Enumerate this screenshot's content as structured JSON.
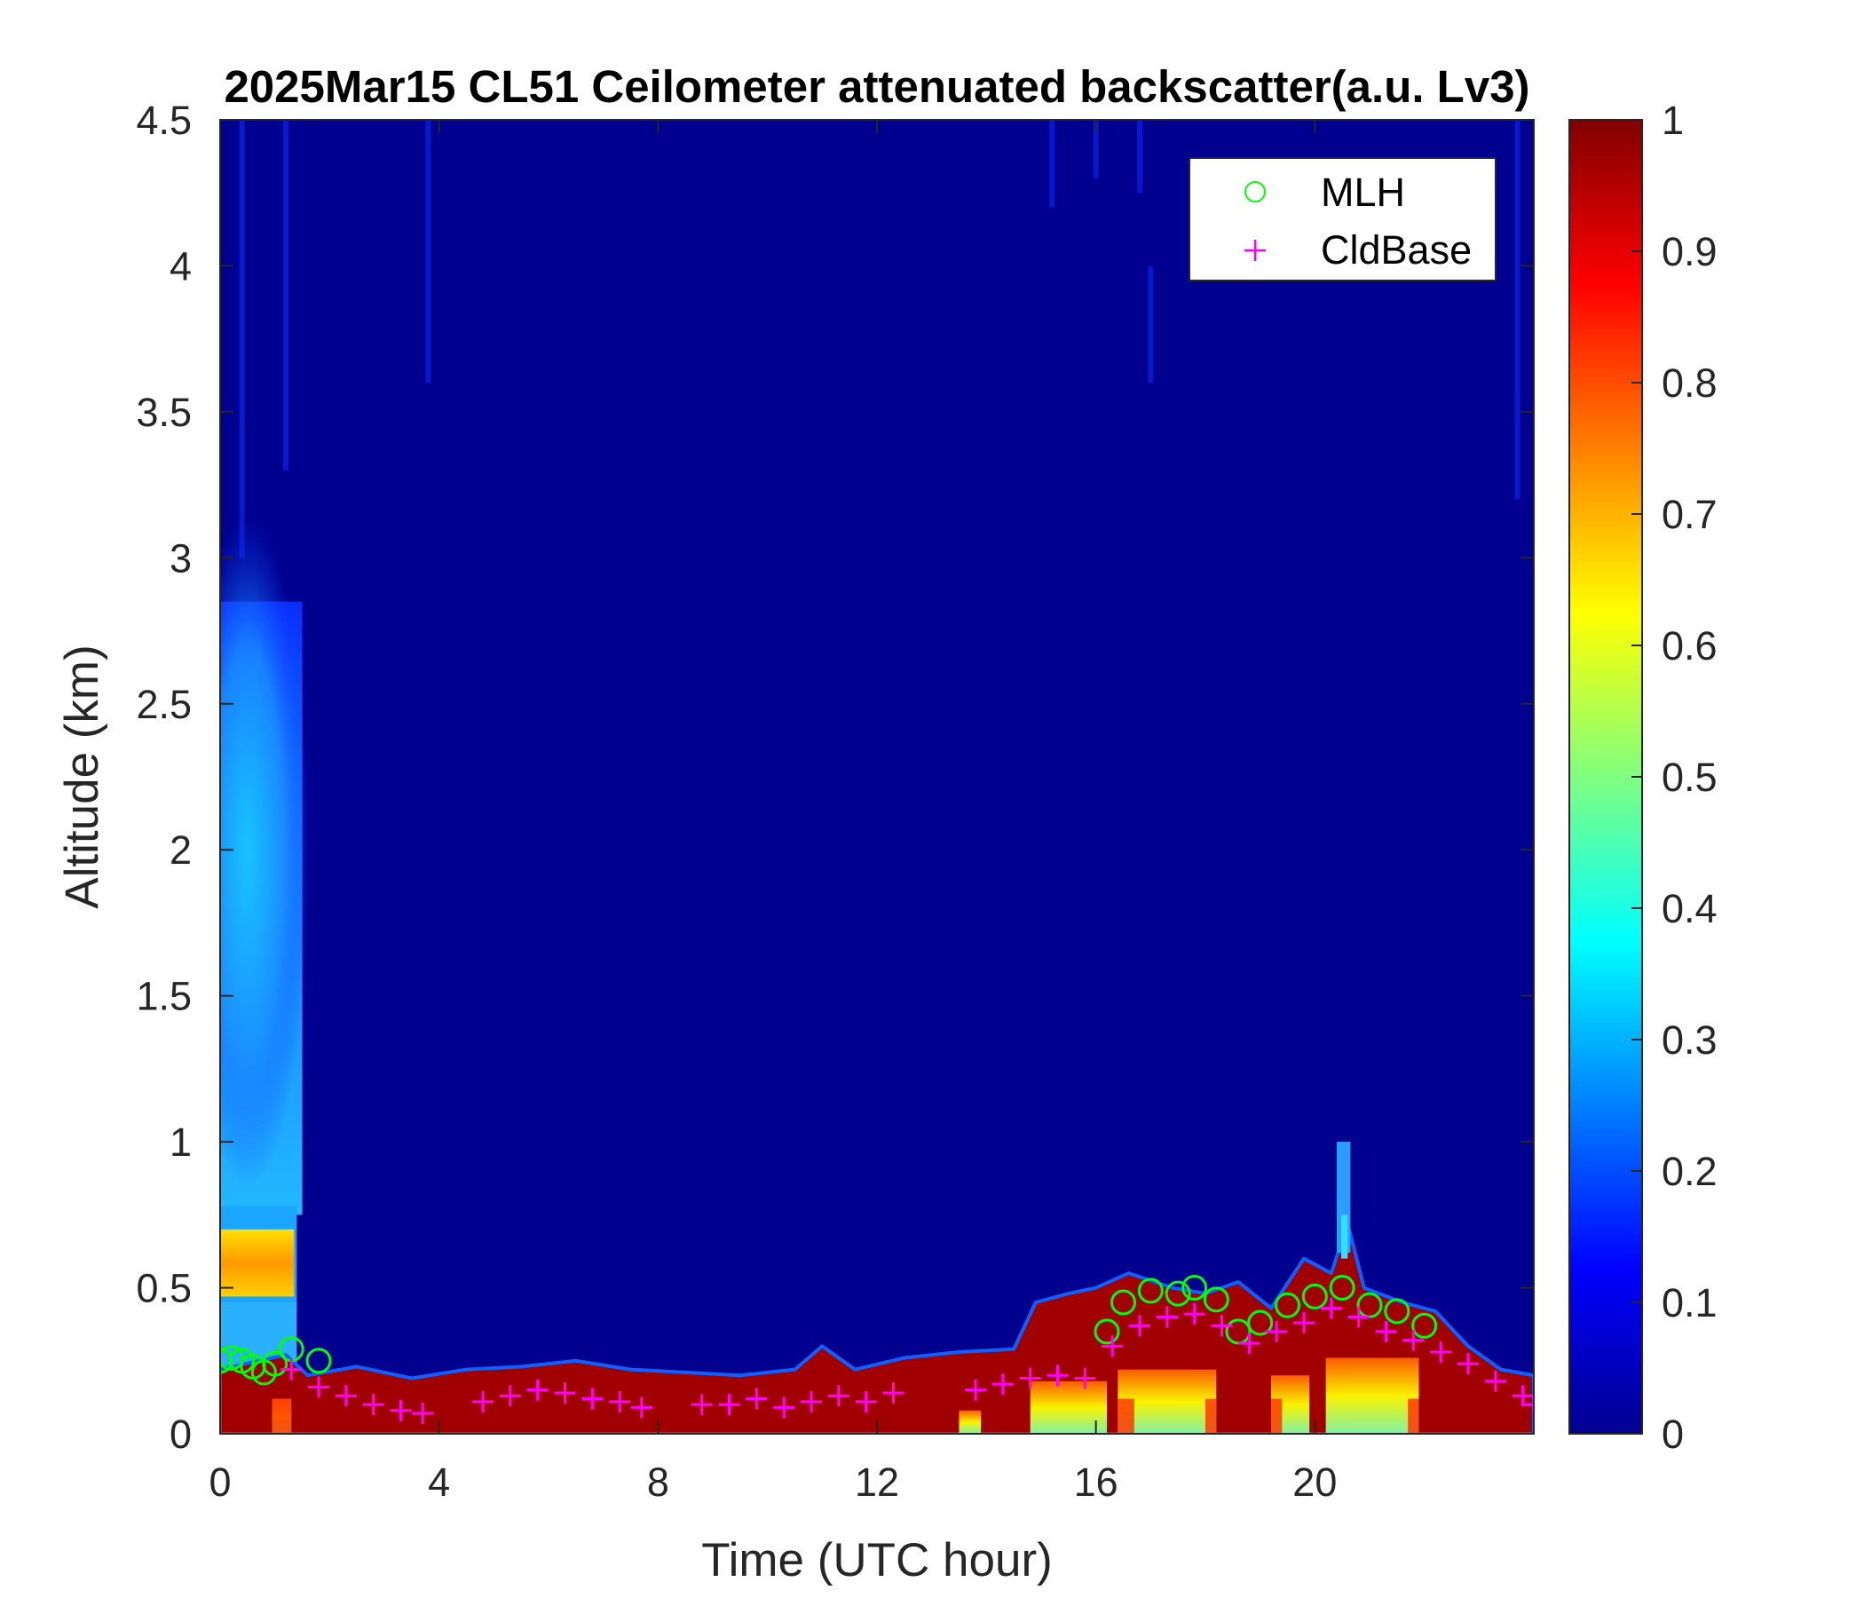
{
  "chart_data": {
    "type": "heatmap",
    "title": "2025Mar15 CL51 Ceilometer attenuated backscatter(a.u. Lv3)",
    "xlabel": "Time (UTC hour)",
    "ylabel": "Altitude (km)",
    "xlim": [
      0,
      24
    ],
    "ylim": [
      0,
      4.5
    ],
    "xticks": [
      "0",
      "4",
      "8",
      "12",
      "16",
      "20"
    ],
    "yticks": [
      "0",
      "0.5",
      "1",
      "1.5",
      "2",
      "2.5",
      "3",
      "3.5",
      "4",
      "4.5"
    ],
    "colorbar": {
      "colormap": "jet",
      "range": [
        0,
        1
      ],
      "ticks": [
        "0",
        "0.1",
        "0.2",
        "0.3",
        "0.4",
        "0.5",
        "0.6",
        "0.7",
        "0.8",
        "0.9",
        "1"
      ]
    },
    "legend": {
      "placement": "top-right",
      "entries": [
        "MLH",
        "CldBase"
      ]
    },
    "series": [
      {
        "name": "MLH",
        "marker": "circle",
        "color": "#00ff00",
        "x": [
          0.0,
          0.2,
          0.4,
          0.6,
          0.8,
          1.0,
          1.3,
          1.8,
          16.2,
          16.5,
          17.0,
          17.5,
          17.8,
          18.2,
          18.6,
          19.0,
          19.5,
          20.0,
          20.5,
          21.0,
          21.5,
          22.0
        ],
        "y": [
          0.25,
          0.26,
          0.25,
          0.23,
          0.21,
          0.24,
          0.29,
          0.25,
          0.35,
          0.45,
          0.49,
          0.48,
          0.5,
          0.46,
          0.35,
          0.38,
          0.44,
          0.47,
          0.5,
          0.44,
          0.42,
          0.37
        ]
      },
      {
        "name": "CldBase",
        "marker": "plus",
        "color": "#ff00ff",
        "x": [
          1.3,
          1.8,
          2.3,
          2.8,
          3.3,
          3.7,
          4.8,
          5.3,
          5.8,
          6.3,
          6.8,
          7.3,
          7.7,
          8.8,
          9.3,
          9.8,
          10.3,
          10.8,
          11.3,
          11.8,
          12.3,
          13.8,
          14.3,
          14.8,
          15.3,
          15.8,
          16.3,
          16.8,
          17.3,
          17.8,
          18.3,
          18.8,
          19.3,
          19.8,
          20.3,
          20.8,
          21.3,
          21.8,
          22.3,
          22.8,
          23.3,
          23.8,
          24.0
        ],
        "y": [
          0.22,
          0.16,
          0.13,
          0.1,
          0.08,
          0.07,
          0.11,
          0.13,
          0.15,
          0.14,
          0.12,
          0.11,
          0.09,
          0.1,
          0.1,
          0.12,
          0.09,
          0.11,
          0.13,
          0.11,
          0.14,
          0.15,
          0.17,
          0.19,
          0.2,
          0.19,
          0.3,
          0.37,
          0.4,
          0.41,
          0.37,
          0.31,
          0.35,
          0.38,
          0.43,
          0.4,
          0.35,
          0.32,
          0.28,
          0.24,
          0.18,
          0.13,
          0.1
        ]
      }
    ],
    "field_description": "attenuated backscatter, a.u.",
    "field_features": [
      {
        "x": [
          0,
          1.5
        ],
        "y_bottom": 0.8,
        "y_top": 2.8,
        "value": 0.3
      },
      {
        "x": [
          0,
          1.4
        ],
        "y_bottom": 0.45,
        "y_top": 0.75,
        "value": 0.65
      },
      {
        "x": [
          0,
          24
        ],
        "y_bottom": 0,
        "y_top": 0.2,
        "value": 1.0
      },
      {
        "x": [
          14.8,
          21.5
        ],
        "y_bottom": 0,
        "y_top": 0.55,
        "value": 1.0
      },
      {
        "x": [
          20.3,
          20.8
        ],
        "y_bottom": 0.45,
        "y_top": 1.0,
        "value": 0.3
      }
    ]
  }
}
